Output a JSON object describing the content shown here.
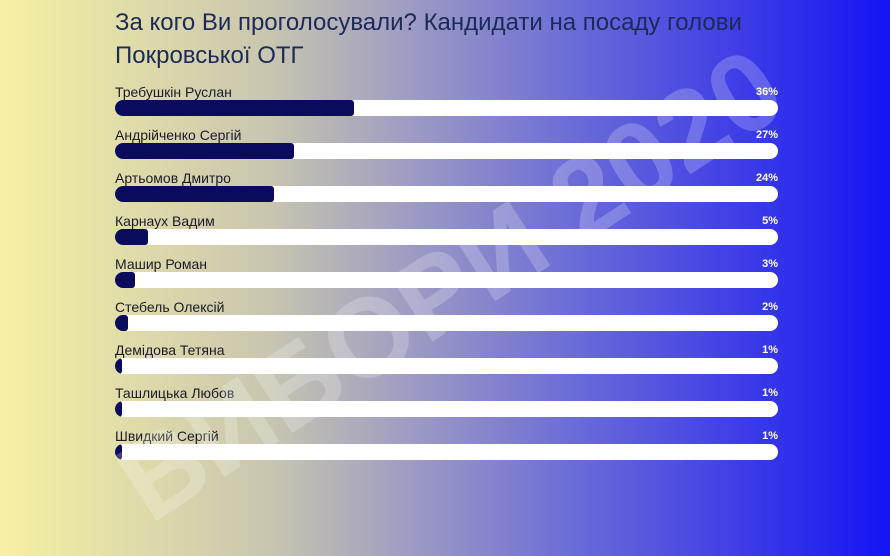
{
  "chart_data": {
    "type": "bar",
    "orientation": "horizontal",
    "title": "За кого Ви проголосували? Кандидати на посаду голови Покровської ОТГ",
    "watermark": "ВИБОРИ 2020",
    "categories": [
      "Требушкін Руслан",
      "Андрійченко Сергій",
      "Артьомов Дмитро",
      "Карнаух Вадим",
      "Машир Роман",
      "Стебель Олексій",
      "Демідова Тетяна",
      "Ташлицька Любов",
      "Швидкий Сергій"
    ],
    "values": [
      36,
      27,
      24,
      5,
      3,
      2,
      1,
      1,
      1
    ],
    "value_labels": [
      "36%",
      "27%",
      "24%",
      "5%",
      "3%",
      "2%",
      "1%",
      "1%",
      "1%"
    ],
    "xlim": [
      0,
      100
    ],
    "color": "#0b0b5e"
  }
}
